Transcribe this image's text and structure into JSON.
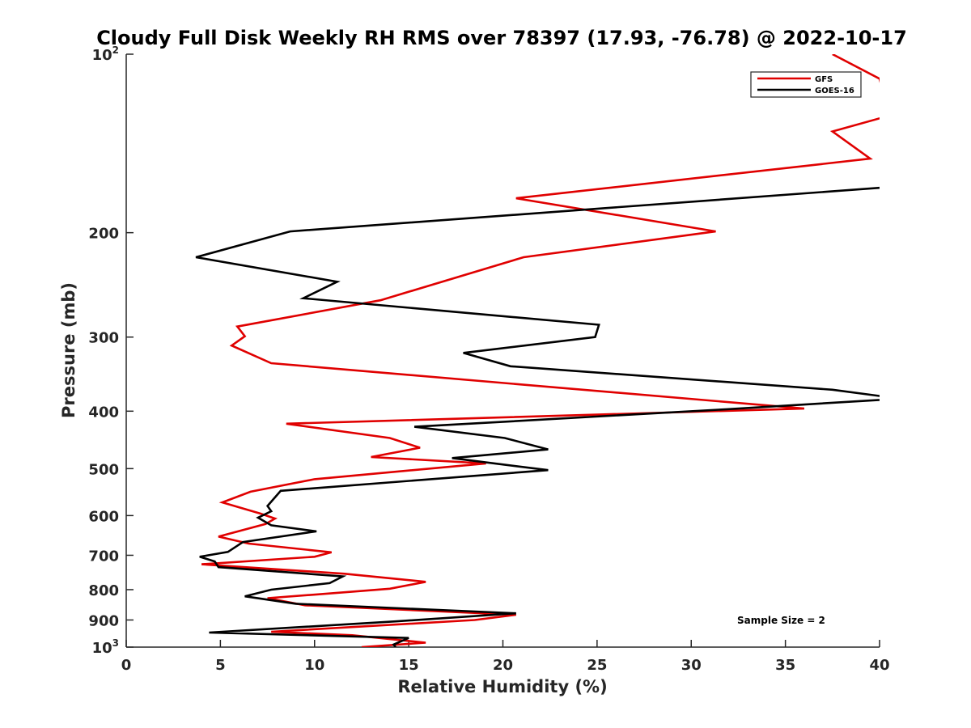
{
  "chart_data": {
    "type": "line",
    "title": "Cloudy Full Disk Weekly RH RMS over 78397 (17.93, -76.78) @ 2022-10-17",
    "xlabel": "Relative Humidity (%)",
    "ylabel": "Pressure (mb)",
    "xlim": [
      0,
      40
    ],
    "ylim": [
      100,
      1000
    ],
    "y_scale": "log",
    "y_reversed": true,
    "xticks": [
      0,
      5,
      10,
      15,
      20,
      25,
      30,
      35,
      40
    ],
    "xtick_labels": [
      "0",
      "5",
      "10",
      "15",
      "20",
      "25",
      "30",
      "35",
      "40"
    ],
    "yticks": [
      100,
      200,
      300,
      400,
      500,
      600,
      700,
      800,
      900,
      1000
    ],
    "ytick_labels": [
      "10^2",
      "200",
      "300",
      "400",
      "500",
      "600",
      "700",
      "800",
      "900",
      "10^3"
    ],
    "grid": false,
    "legend_position": "top-right",
    "annotation": "Sample Size = 2",
    "series": [
      {
        "name": "GFS",
        "color": "#e00000",
        "points": [
          [
            37.5,
            100
          ],
          [
            40.0,
            110
          ],
          [
            40.5,
            127
          ],
          [
            37.5,
            135
          ],
          [
            39.5,
            150
          ],
          [
            20.7,
            175
          ],
          [
            31.3,
            199
          ],
          [
            21.1,
            220
          ],
          [
            13.5,
            260
          ],
          [
            5.9,
            288
          ],
          [
            6.3,
            299
          ],
          [
            5.6,
            310
          ],
          [
            7.7,
            332
          ],
          [
            36.0,
            396
          ],
          [
            8.5,
            420
          ],
          [
            14.0,
            444
          ],
          [
            15.6,
            461
          ],
          [
            13.0,
            478
          ],
          [
            19.1,
            490
          ],
          [
            10.0,
            521
          ],
          [
            6.6,
            547
          ],
          [
            5.1,
            570
          ],
          [
            7.1,
            595
          ],
          [
            7.9,
            607
          ],
          [
            7.4,
            620
          ],
          [
            4.9,
            651
          ],
          [
            6.5,
            669
          ],
          [
            10.9,
            692
          ],
          [
            10.0,
            704
          ],
          [
            4.0,
            725
          ],
          [
            11.6,
            752
          ],
          [
            15.9,
            776
          ],
          [
            14.0,
            797
          ],
          [
            10.1,
            815
          ],
          [
            7.5,
            827
          ],
          [
            9.5,
            850
          ],
          [
            20.7,
            882
          ],
          [
            18.5,
            900
          ],
          [
            7.7,
            942
          ],
          [
            12.0,
            955
          ],
          [
            15.9,
            983
          ],
          [
            12.5,
            1000
          ]
        ]
      },
      {
        "name": "GOES-16",
        "color": "#000000",
        "points": [
          [
            40.0,
            168
          ],
          [
            8.7,
            199
          ],
          [
            3.7,
            220
          ],
          [
            11.2,
            242
          ],
          [
            9.4,
            258
          ],
          [
            25.1,
            286
          ],
          [
            24.9,
            300
          ],
          [
            17.9,
            319
          ],
          [
            20.4,
            336
          ],
          [
            37.5,
            368
          ],
          [
            40.0,
            377
          ],
          [
            40.5,
            382
          ],
          [
            31.9,
            397
          ],
          [
            15.3,
            425
          ],
          [
            20.1,
            444
          ],
          [
            22.4,
            464
          ],
          [
            17.3,
            480
          ],
          [
            22.4,
            503
          ],
          [
            8.2,
            545
          ],
          [
            7.5,
            578
          ],
          [
            7.7,
            590
          ],
          [
            7.0,
            605
          ],
          [
            7.7,
            623
          ],
          [
            10.1,
            638
          ],
          [
            6.2,
            665
          ],
          [
            5.4,
            691
          ],
          [
            3.9,
            704
          ],
          [
            4.7,
            717
          ],
          [
            4.9,
            733
          ],
          [
            11.5,
            760
          ],
          [
            10.8,
            780
          ],
          [
            7.7,
            800
          ],
          [
            6.3,
            821
          ],
          [
            9.0,
            845
          ],
          [
            20.7,
            877
          ],
          [
            14.3,
            905
          ],
          [
            4.4,
            945
          ],
          [
            15.0,
            965
          ],
          [
            14.2,
            990
          ],
          [
            14.3,
            1000
          ]
        ]
      }
    ]
  }
}
